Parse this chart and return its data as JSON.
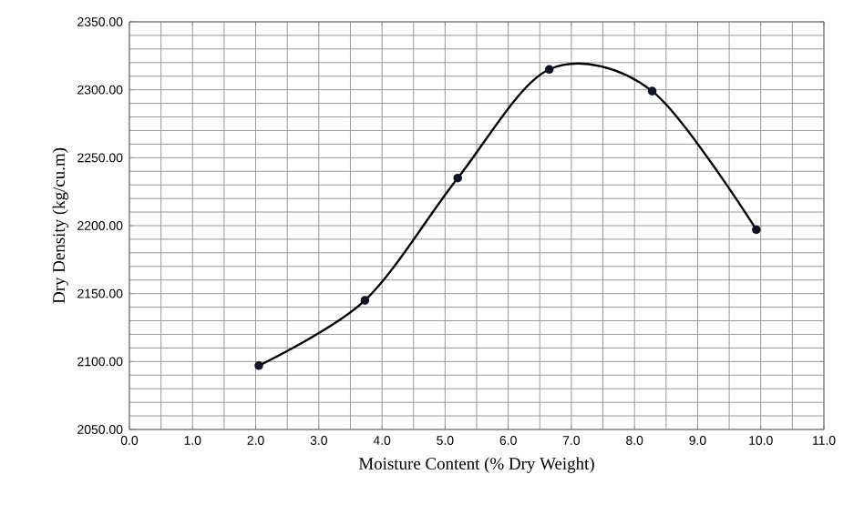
{
  "chart_data": {
    "type": "line",
    "xlabel": "Moisture Content (% Dry Weight)",
    "ylabel": "Dry Density (kg/cu.m)",
    "x": [
      2.05,
      3.73,
      5.2,
      6.65,
      8.28,
      9.93
    ],
    "series": [
      {
        "color": "#0d1526",
        "values": [
          2097,
          2145,
          2235,
          2315,
          2299,
          2197
        ]
      }
    ],
    "xlim": [
      0,
      11
    ],
    "ylim": [
      2050,
      2350
    ],
    "xticks": [
      {
        "value": 0,
        "label": "0.0"
      },
      {
        "value": 1,
        "label": "1.0"
      },
      {
        "value": 2,
        "label": "2.0"
      },
      {
        "value": 3,
        "label": "3.0"
      },
      {
        "value": 4,
        "label": "4.0"
      },
      {
        "value": 5,
        "label": "5.0"
      },
      {
        "value": 6,
        "label": "6.0"
      },
      {
        "value": 7,
        "label": "7.0"
      },
      {
        "value": 8,
        "label": "8.0"
      },
      {
        "value": 9,
        "label": "9.0"
      },
      {
        "value": 10,
        "label": "10.0"
      },
      {
        "value": 11,
        "label": "11.0"
      }
    ],
    "yticks": [
      {
        "value": 2050,
        "label": "2050.00"
      },
      {
        "value": 2100,
        "label": "2100.00"
      },
      {
        "value": 2150,
        "label": "2150.00"
      },
      {
        "value": 2200,
        "label": "2200.00"
      },
      {
        "value": 2250,
        "label": "2250.00"
      },
      {
        "value": 2300,
        "label": "2300.00"
      },
      {
        "value": 2350,
        "label": "2350.00"
      }
    ],
    "grid": true,
    "marker": "circle",
    "line_style": "solid"
  }
}
